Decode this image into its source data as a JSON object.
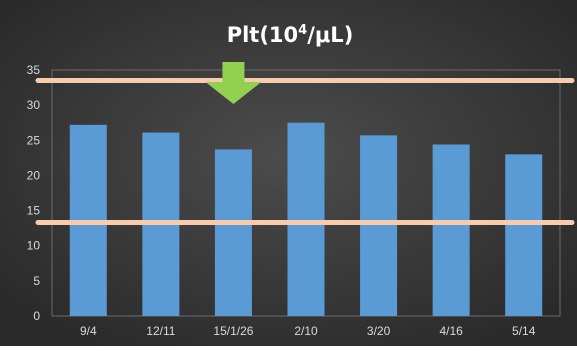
{
  "chart_data": {
    "type": "bar",
    "title": "Plt(10",
    "title_superscript": "4",
    "title_suffix": "/μL)",
    "categories": [
      "9/4",
      "12/11",
      "15/1/26",
      "2/10",
      "3/20",
      "4/16",
      "5/14"
    ],
    "values": [
      27.2,
      26.1,
      23.7,
      27.5,
      25.7,
      24.4,
      23.0
    ],
    "ylim": [
      0,
      35
    ],
    "yticks": [
      "0",
      "5",
      "10",
      "15",
      "20",
      "25",
      "30",
      "35"
    ],
    "reference_lines": [
      13.3,
      33.5
    ],
    "marker_category": "15/1/26",
    "colors": {
      "background_outer": "#2a2a2a",
      "background_inner": "#4c4c4c",
      "bar": "#5b9bd5",
      "reference_line": "#f8cbad",
      "marker": "#92d050",
      "text": "#ffffff",
      "tick_text": "#d9d9d9",
      "grid": "#6b6b6b"
    }
  }
}
